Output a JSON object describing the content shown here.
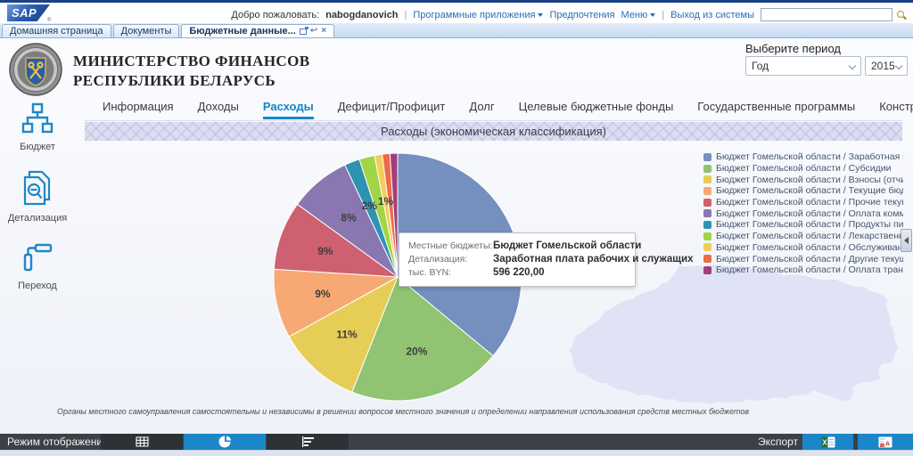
{
  "top_bar": {
    "logo_text": "SAP",
    "logo_reg": "®",
    "welcome_label": "Добро пожаловать:",
    "username": "nabogdanovich",
    "apps_menu_label": "Программные приложения",
    "preferences_label": "Предпочтения",
    "menu_label": "Меню",
    "logout_label": "Выход из системы",
    "separator": "|",
    "search_value": ""
  },
  "page_tabs": {
    "tab1": "Домашняя страница",
    "tab2": "Документы",
    "tab3": "Бюджетные данные..."
  },
  "icons": {
    "back_arrow": "↩",
    "close": "×"
  },
  "header": {
    "ministry_line1": "МИНИСТЕРСТВО ФИНАНСОВ",
    "ministry_line2": "РЕСПУБЛИКИ БЕЛАРУСЬ",
    "period_label": "Выберите период",
    "period_type_value": "Год",
    "period_year_value": "2015"
  },
  "sidebar": {
    "items": [
      {
        "label": "Бюджет",
        "icon": "org-chart-icon"
      },
      {
        "label": "Детализация",
        "icon": "document-search-icon"
      },
      {
        "label": "Переход",
        "icon": "link-transition-icon"
      }
    ]
  },
  "nav_tabs": {
    "items": [
      "Информация",
      "Доходы",
      "Расходы",
      "Дефицит/Профицит",
      "Долг",
      "Целевые бюджетные фонды",
      "Государственные программы",
      "Конструктор"
    ],
    "active": "Расходы"
  },
  "banner_title": "Расходы (экономическая классификация)",
  "chart_data": {
    "type": "pie",
    "title": "Расходы (экономическая классификация)",
    "unit": "тыс. BYN",
    "legend_position": "right",
    "start": "top, clockwise",
    "slices": [
      {
        "label": "Бюджет Гомельской области / Заработная плата рабочих и служащих",
        "value": 36,
        "percent_label": "36%",
        "color": "#7590bf",
        "label_visible": true
      },
      {
        "label": "Бюджет Гомельской области / Субсидии",
        "value": 20,
        "percent_label": "20%",
        "color": "#90c472",
        "label_visible": true
      },
      {
        "label": "Бюджет Гомельской области / Взносы (отчисления) ...",
        "value": 11,
        "percent_label": "11%",
        "color": "#e6cd55",
        "label_visible": true
      },
      {
        "label": "Бюджет Гомельской области / Текущие бюджетные ...",
        "value": 9,
        "percent_label": "9%",
        "color": "#f6a973",
        "label_visible": true
      },
      {
        "label": "Бюджет Гомельской области / Прочие текущие расх...",
        "value": 9,
        "percent_label": "9%",
        "color": "#cf6071",
        "label_visible": true
      },
      {
        "label": "Бюджет Гомельской области / Оплата коммунальны...",
        "value": 8,
        "percent_label": "8%",
        "color": "#8a76b1",
        "label_visible": true
      },
      {
        "label": "Бюджет Гомельской области / Продукты питания",
        "value": 2,
        "percent_label": "2%",
        "color": "#2e93b0",
        "label_visible": true
      },
      {
        "label": "Бюджет Гомельской области / Лекарственные средс...",
        "value": 2,
        "percent_label": "2%",
        "color": "#a2d545",
        "label_visible": false
      },
      {
        "label": "Бюджет Гомельской области / Обслуживание госуд...",
        "value": 1,
        "percent_label": "1%",
        "color": "#f2cd5a",
        "label_visible": true
      },
      {
        "label": "Бюджет Гомельской области / Другие текущие расхо...",
        "value": 1,
        "percent_label": "1%",
        "color": "#ee6a49",
        "label_visible": false
      },
      {
        "label": "Бюджет Гомельской области / Оплата транспортных",
        "value": 1,
        "percent_label": "1%",
        "color": "#a23e7c",
        "label_visible": false
      }
    ]
  },
  "legend": {
    "items": [
      {
        "text": "Бюджет Гомельской области / Заработная плата ра...",
        "color": "#7590bf"
      },
      {
        "text": "Бюджет Гомельской области / Субсидии",
        "color": "#90c472"
      },
      {
        "text": "Бюджет Гомельской области / Взносы (отчисления) ...",
        "color": "#e6cd55"
      },
      {
        "text": "Бюджет Гомельской области / Текущие бюджетные ...",
        "color": "#f6a973"
      },
      {
        "text": "Бюджет Гомельской области / Прочие текущие расх...",
        "color": "#cf6071"
      },
      {
        "text": "Бюджет Гомельской области / Оплата коммунальны...",
        "color": "#8a76b1"
      },
      {
        "text": "Бюджет Гомельской области / Продукты питания",
        "color": "#2e93b0"
      },
      {
        "text": "Бюджет Гомельской области / Лекарственные средс...",
        "color": "#a2d545"
      },
      {
        "text": "Бюджет Гомельской области / Обслуживание госуд...",
        "color": "#f2cd5a"
      },
      {
        "text": "Бюджет Гомельской области / Другие текущие расхо...",
        "color": "#ee6a49"
      },
      {
        "text": "Бюджет Гомельской области / Оплата транспортных",
        "color": "#a23e7c"
      }
    ]
  },
  "tooltip": {
    "rows": [
      {
        "label": "Местные бюджеты:",
        "value": "Бюджет Гомельской области"
      },
      {
        "label": "Детализация:",
        "value": "Заработная плата рабочих и служащих"
      },
      {
        "label": "тыс. BYN:",
        "value": "596 220,00"
      }
    ]
  },
  "footnote": "Органы местного самоуправления самостоятельны и независимы в решении вопросов местного значения и определении направления использования средств местных бюджетов",
  "bottom_bar": {
    "mode_label": "Режим отображения",
    "modes": [
      {
        "name": "table-view",
        "icon": "grid-icon",
        "active": false
      },
      {
        "name": "pie-chart-view",
        "icon": "pie-chart-icon",
        "active": true
      },
      {
        "name": "bar-chart-view",
        "icon": "bar-chart-icon",
        "active": false
      }
    ],
    "export_label": "Экспорт",
    "export_buttons": [
      {
        "name": "excel",
        "icon": "excel-icon"
      },
      {
        "name": "pdf",
        "icon": "pdf-icon"
      }
    ]
  },
  "colors": {
    "accent_blue": "#1b87c9",
    "top_strip": "#1a4284",
    "banner_bg": "#dcddf1",
    "map_fill": "#e0e3f5",
    "bottom_bar_bg": "#3b4146"
  }
}
